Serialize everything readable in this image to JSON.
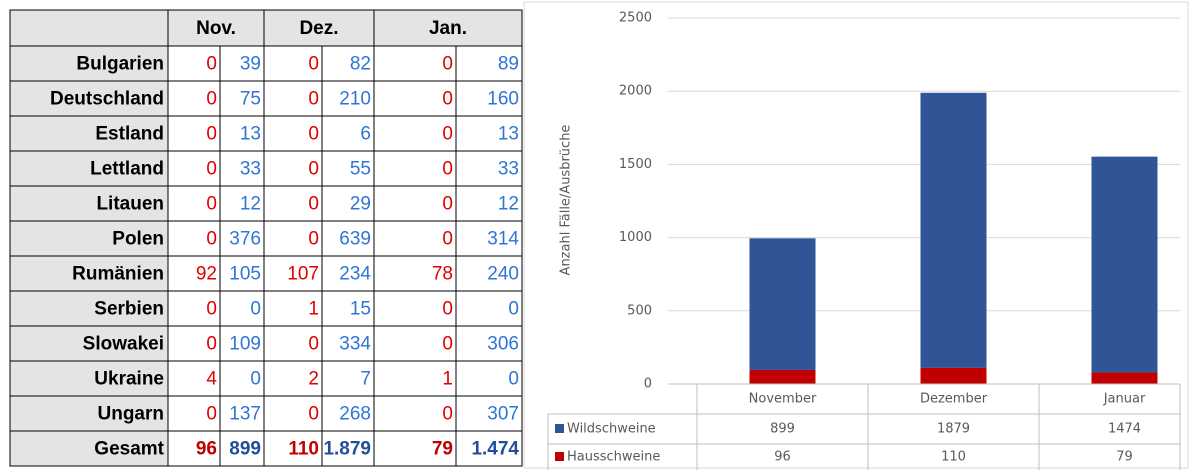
{
  "table": {
    "months": [
      "Nov.",
      "Dez.",
      "Jan."
    ],
    "rows": [
      {
        "country": "Bulgarien",
        "values": [
          "0",
          "39",
          "0",
          "82",
          "0",
          "89"
        ]
      },
      {
        "country": "Deutschland",
        "values": [
          "0",
          "75",
          "0",
          "210",
          "0",
          "160"
        ]
      },
      {
        "country": "Estland",
        "values": [
          "0",
          "13",
          "0",
          "6",
          "0",
          "13"
        ]
      },
      {
        "country": "Lettland",
        "values": [
          "0",
          "33",
          "0",
          "55",
          "0",
          "33"
        ]
      },
      {
        "country": "Litauen",
        "values": [
          "0",
          "12",
          "0",
          "29",
          "0",
          "12"
        ]
      },
      {
        "country": "Polen",
        "values": [
          "0",
          "376",
          "0",
          "639",
          "0",
          "314"
        ]
      },
      {
        "country": "Rumänien",
        "values": [
          "92",
          "105",
          "107",
          "234",
          "78",
          "240"
        ]
      },
      {
        "country": "Serbien",
        "values": [
          "0",
          "0",
          "1",
          "15",
          "0",
          "0"
        ]
      },
      {
        "country": "Slowakei",
        "values": [
          "0",
          "109",
          "0",
          "334",
          "0",
          "306"
        ]
      },
      {
        "country": "Ukraine",
        "values": [
          "4",
          "0",
          "2",
          "7",
          "1",
          "0"
        ]
      },
      {
        "country": "Ungarn",
        "values": [
          "0",
          "137",
          "0",
          "268",
          "0",
          "307"
        ]
      }
    ],
    "total": {
      "label": "Gesamt",
      "values": [
        "96",
        "899",
        "110",
        "1.879",
        "79",
        "1.474"
      ]
    }
  },
  "chart_data": {
    "type": "stacked_bar",
    "y_label": "Anzahl Fälle/Ausbrüche",
    "categories": [
      "November",
      "Dezember",
      "Januar"
    ],
    "series": [
      {
        "name": "Wildschweine",
        "color": "#2f5597",
        "values": [
          899,
          1879,
          1474
        ]
      },
      {
        "name": "Hausschweine",
        "color": "#c00000",
        "values": [
          96,
          110,
          79
        ]
      }
    ],
    "ylim": [
      0,
      2500
    ],
    "yticks": [
      0,
      500,
      1000,
      1500,
      2000,
      2500
    ],
    "grid": true
  }
}
